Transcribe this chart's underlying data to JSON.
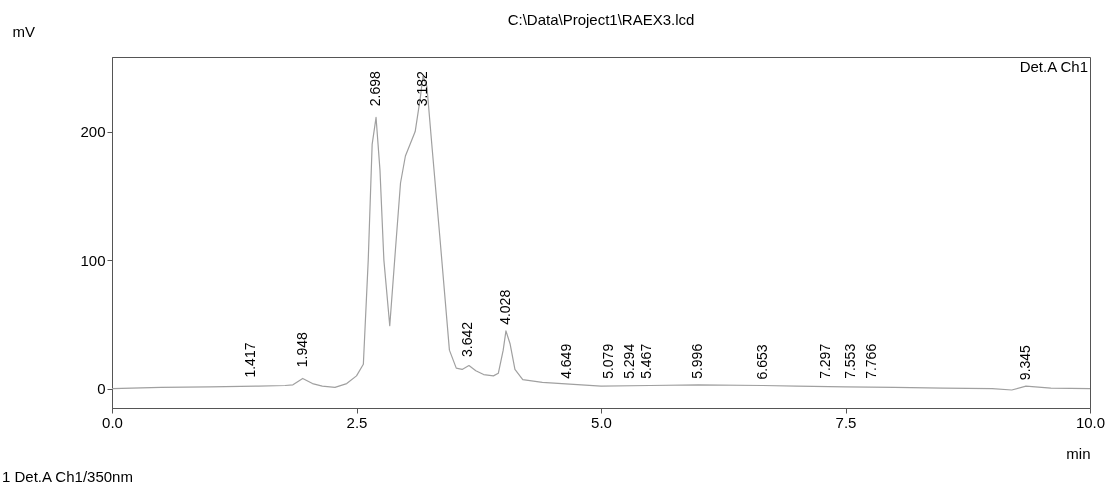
{
  "chart_data": {
    "type": "line",
    "title": "C:\\Data\\Project1\\RAEX3.lcd",
    "xlabel": "min",
    "ylabel": "mV",
    "xlim": [
      0,
      10
    ],
    "xticks": [
      {
        "value": 0,
        "label": "0.0"
      },
      {
        "value": 2.5,
        "label": "2.5"
      },
      {
        "value": 5,
        "label": "5.0"
      },
      {
        "value": 7.5,
        "label": "7.5"
      },
      {
        "value": 10,
        "label": "10.0"
      }
    ],
    "ylim": [
      -15,
      258
    ],
    "yticks": [
      0,
      100,
      200
    ],
    "grid": false,
    "legend": "top right",
    "marker": "none",
    "line_style": "solid",
    "series": [
      {
        "name": "Det.A Ch1",
        "color": "#a0a0a0",
        "x": [
          0,
          0.5,
          1,
          1.5,
          1.77,
          1.85,
          1.95,
          2.05,
          2.15,
          2.28,
          2.4,
          2.5,
          2.57,
          2.62,
          2.66,
          2.7,
          2.74,
          2.78,
          2.84,
          2.9,
          2.95,
          3.0,
          3.1,
          3.15,
          3.18,
          3.22,
          3.27,
          3.35,
          3.45,
          3.52,
          3.58,
          3.65,
          3.72,
          3.8,
          3.9,
          3.95,
          4.0,
          4.028,
          4.07,
          4.12,
          4.2,
          4.4,
          4.6,
          5,
          5.5,
          5.996,
          6.653,
          7,
          7.5,
          8,
          8.5,
          9,
          9.2,
          9.345,
          9.6,
          10
        ],
        "values": [
          0,
          1,
          1.5,
          2,
          2.5,
          3,
          8,
          4,
          2,
          1,
          4,
          10,
          19,
          100,
          190,
          211,
          170,
          100,
          49,
          110,
          160,
          181,
          200,
          225,
          243,
          235,
          190,
          120,
          30,
          16,
          15,
          18,
          14,
          11,
          10,
          12,
          30,
          45,
          35,
          15,
          7,
          5,
          4,
          2,
          2.5,
          3,
          2.5,
          2,
          1.5,
          1,
          0.5,
          0,
          -1,
          2,
          0.5,
          0
        ]
      }
    ],
    "annotations": [
      {
        "text": "1.417",
        "x": 1.417,
        "y": 4
      },
      {
        "text": "1.948",
        "x": 1.948,
        "y": 12
      },
      {
        "text": "2.698",
        "x": 2.698,
        "y": 215
      },
      {
        "text": "3.182",
        "x": 3.182,
        "y": 215
      },
      {
        "text": "3.642",
        "x": 3.642,
        "y": 20
      },
      {
        "text": "4.028",
        "x": 4.028,
        "y": 45
      },
      {
        "text": "4.649",
        "x": 4.649,
        "y": 3
      },
      {
        "text": "5.079",
        "x": 5.079,
        "y": 3
      },
      {
        "text": "5.294",
        "x": 5.294,
        "y": 3
      },
      {
        "text": "5.467",
        "x": 5.467,
        "y": 3
      },
      {
        "text": "5.996",
        "x": 5.996,
        "y": 3
      },
      {
        "text": "6.653",
        "x": 6.653,
        "y": 2.5
      },
      {
        "text": "7.297",
        "x": 7.297,
        "y": 3
      },
      {
        "text": "7.553",
        "x": 7.553,
        "y": 3
      },
      {
        "text": "7.766",
        "x": 7.766,
        "y": 3
      },
      {
        "text": "9.345",
        "x": 9.345,
        "y": 2
      },
      "1  Det.A Ch1/350nm"
    ]
  }
}
